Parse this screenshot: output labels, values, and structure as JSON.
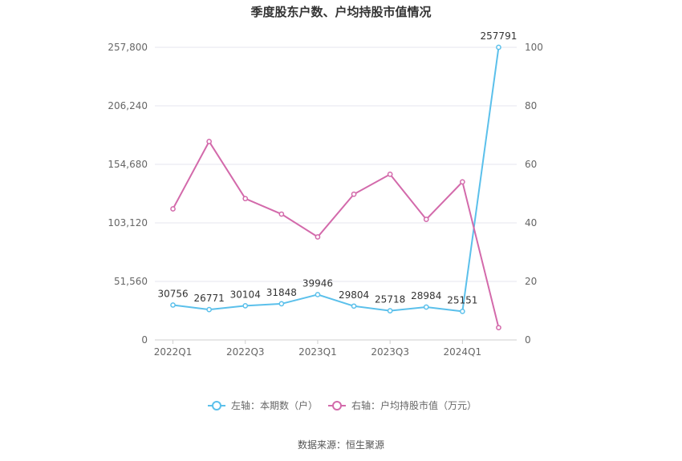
{
  "chart_data": {
    "type": "line",
    "title": "季度股东户数、户均持股市值情况",
    "categories": [
      "2022Q1",
      "2022Q2",
      "2022Q3",
      "2022Q4",
      "2023Q1",
      "2023Q2",
      "2023Q3",
      "2023Q4",
      "2024Q1",
      "2024Q2"
    ],
    "x_tick_labels": [
      "2022Q1",
      "2022Q3",
      "2023Q1",
      "2023Q3",
      "2024Q1"
    ],
    "left_axis": {
      "min": 0,
      "max": 257800,
      "ticks": [
        "0",
        "51,560",
        "103,120",
        "154,680",
        "206,240",
        "257,800"
      ]
    },
    "right_axis": {
      "min": 0,
      "max": 100,
      "ticks": [
        "0",
        "20",
        "40",
        "60",
        "80",
        "100"
      ]
    },
    "grid": true,
    "legend_position": "bottom",
    "series": [
      {
        "name": "左轴：本期数（户）",
        "axis": "left",
        "color": "#5bc0eb",
        "values": [
          30756,
          26771,
          30104,
          31848,
          39946,
          29804,
          25718,
          28984,
          25151,
          257791
        ],
        "labels": [
          "30756",
          "26771",
          "30104",
          "31848",
          "39946",
          "29804",
          "25718",
          "28984",
          "25151",
          "257791"
        ]
      },
      {
        "name": "右轴：户均持股市值（万元）",
        "axis": "right",
        "color": "#d36aab",
        "values": [
          44.8,
          67.8,
          48.3,
          43.0,
          35.2,
          49.8,
          56.6,
          41.2,
          54.0,
          4.2
        ]
      }
    ],
    "source": "数据来源：恒生聚源"
  }
}
